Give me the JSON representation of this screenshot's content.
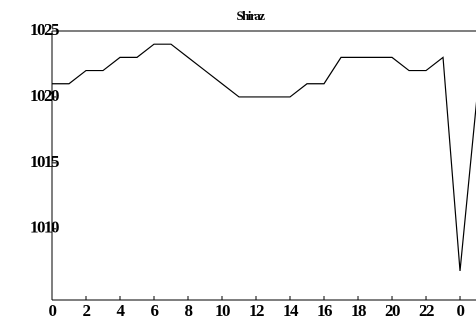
{
  "chart_data": {
    "type": "line",
    "title": "Shiraz",
    "x": [
      0,
      1,
      2,
      3,
      4,
      5,
      6,
      7,
      8,
      9,
      10,
      11,
      12,
      13,
      14,
      15,
      16,
      17,
      18,
      19,
      20,
      21,
      22,
      23,
      24,
      25
    ],
    "series": [
      {
        "color": "#000000",
        "values": [
          1021,
          1021,
          1022,
          1022,
          1023,
          1023,
          1024,
          1024,
          1023,
          1022,
          1021,
          1020,
          1020,
          1020,
          1020,
          1021,
          1021,
          1023,
          1023,
          1023,
          1023,
          1022,
          1022,
          1023,
          1006.8,
          1020
        ]
      }
    ],
    "xlim": [
      0,
      24.94
    ],
    "xticks": [
      0,
      2,
      4,
      6,
      8,
      10,
      12,
      14,
      16,
      18,
      20,
      22,
      {
        "value": 24,
        "label": "0"
      }
    ],
    "ylim": [
      1004.6,
      1025
    ],
    "yticks": [
      1010,
      1015,
      1020,
      1025
    ]
  }
}
